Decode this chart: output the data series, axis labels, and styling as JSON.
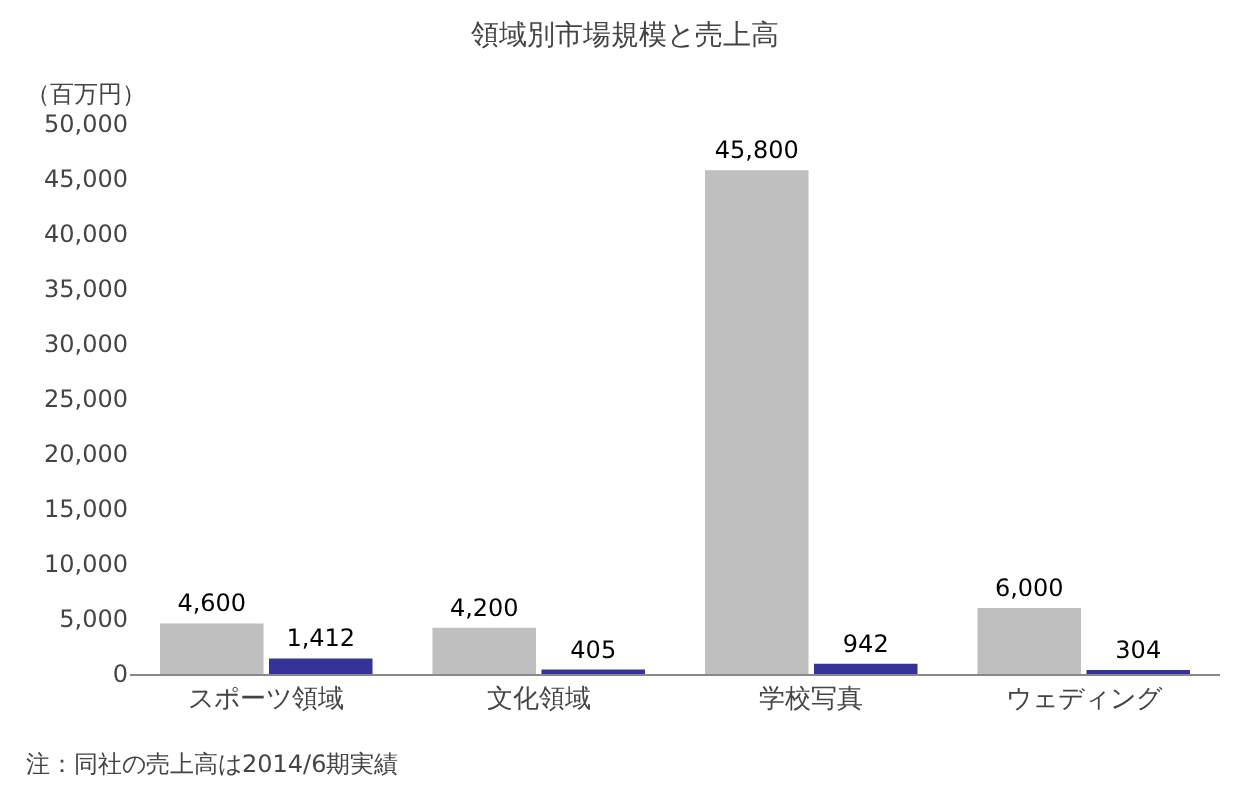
{
  "chart_data": {
    "type": "bar",
    "title": "領域別市場規模と売上高",
    "ylabel": "（百万円）",
    "categories": [
      "スポーツ領域",
      "文化領域",
      "学校写真",
      "ウェディング"
    ],
    "series": [
      {
        "color": "#bfbfbf",
        "values": [
          4600,
          4200,
          45800,
          6000
        ],
        "value_labels": [
          "4,600",
          "4,200",
          "45,800",
          "6,000"
        ]
      },
      {
        "color": "#333399",
        "values": [
          1412,
          405,
          942,
          304
        ],
        "value_labels": [
          "1,412",
          "405",
          "942",
          "304"
        ]
      }
    ],
    "ylim": [
      0,
      50000
    ],
    "yticks": [
      0,
      {
        "value": 5000,
        "label": "5,000"
      },
      {
        "value": 10000,
        "label": "10,000"
      },
      {
        "value": 15000,
        "label": "15,000"
      },
      {
        "value": 20000,
        "label": "20,000"
      },
      {
        "value": 25000,
        "label": "25,000"
      },
      {
        "value": 30000,
        "label": "30,000"
      },
      {
        "value": 35000,
        "label": "35,000"
      },
      {
        "value": 40000,
        "label": "40,000"
      },
      {
        "value": 45000,
        "label": "45,000"
      },
      {
        "value": 50000,
        "label": "50,000"
      }
    ],
    "grid": false,
    "annotations": [
      "注：同社の売上高は2014/6期実績"
    ]
  }
}
